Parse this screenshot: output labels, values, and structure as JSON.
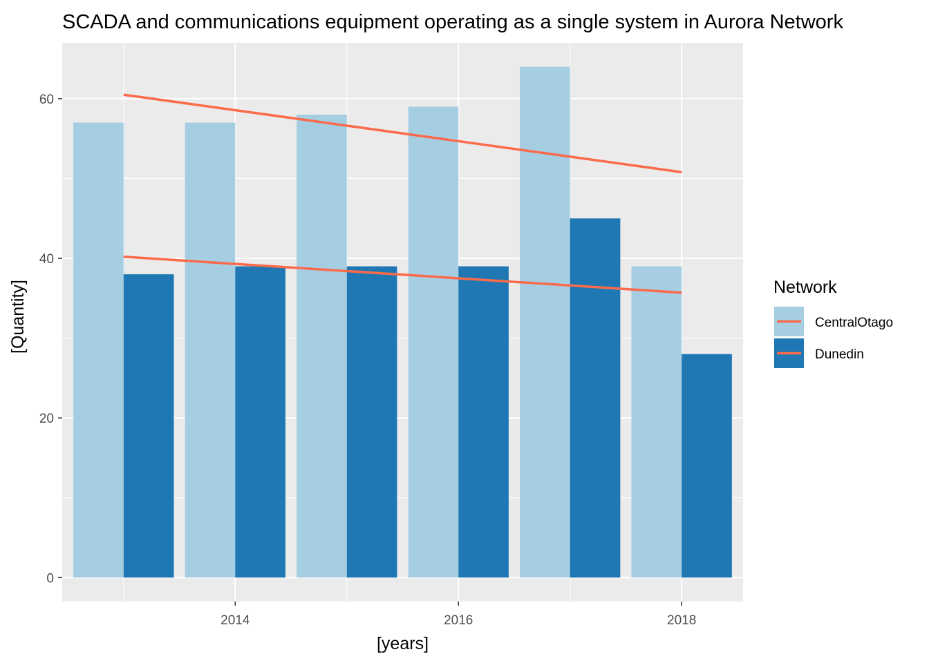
{
  "chart_data": {
    "type": "bar",
    "title": "SCADA and communications equipment operating as a single system in Aurora Network",
    "xlabel": "[years]",
    "ylabel": "[Quantity]",
    "x": [
      2013,
      2014,
      2015,
      2016,
      2017,
      2018
    ],
    "x_ticks": [
      "2014",
      "2016",
      "2018"
    ],
    "y_ticks": [
      "0",
      "20",
      "40",
      "60"
    ],
    "ylim": [
      -3,
      67
    ],
    "grid": true,
    "legend": {
      "title": "Network",
      "position": "right"
    },
    "series": [
      {
        "name": "CentralOtago",
        "color": "#a6cee3",
        "values": [
          57,
          57,
          58,
          59,
          64,
          39
        ]
      },
      {
        "name": "Dunedin",
        "color": "#1f78b4",
        "values": [
          38,
          39,
          39,
          39,
          45,
          28
        ]
      }
    ],
    "trend_lines": [
      {
        "series": "CentralOtago",
        "color": "#fb6a4a",
        "x": [
          2013,
          2018
        ],
        "y": [
          60.5,
          50.8
        ]
      },
      {
        "series": "Dunedin",
        "color": "#fb6a4a",
        "x": [
          2013,
          2018
        ],
        "y": [
          40.2,
          35.7
        ]
      }
    ]
  }
}
